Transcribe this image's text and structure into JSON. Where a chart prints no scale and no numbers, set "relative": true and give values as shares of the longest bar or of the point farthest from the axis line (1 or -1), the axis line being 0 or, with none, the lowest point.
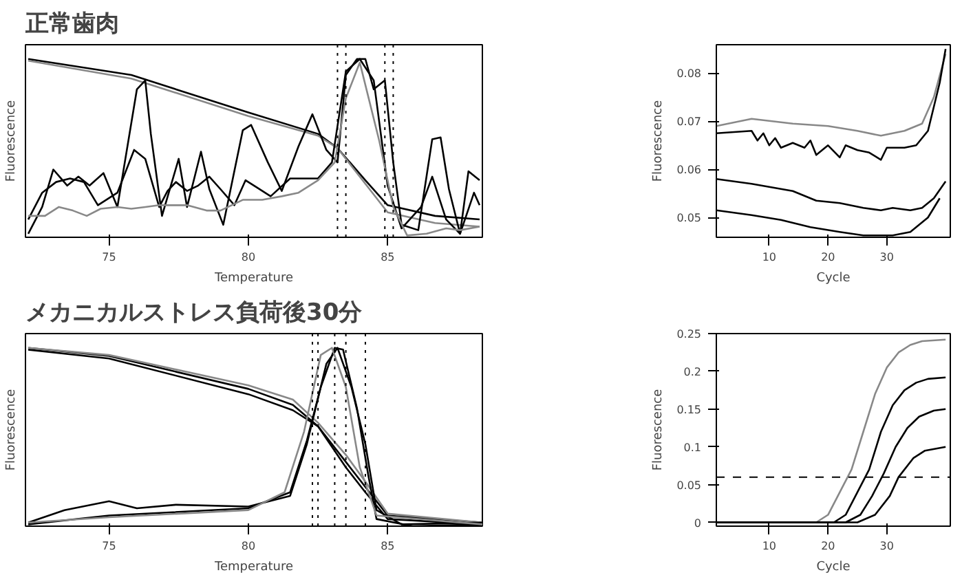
{
  "chart_data": [
    {
      "type": "line",
      "title": "正常歯肉",
      "xlabel": "Temperature",
      "ylabel": "Fluorescence",
      "relative": true,
      "tick_labels": "x",
      "grid": false,
      "xlim": [
        72.0,
        88.4
      ],
      "xticks": [
        75,
        80,
        85
      ],
      "ref_lines": [
        {
          "axis": "x",
          "value": 83.2,
          "line_style": "dotted",
          "color": "#000000"
        },
        {
          "axis": "x",
          "value": 83.5,
          "line_style": "dotted",
          "color": "#000000"
        },
        {
          "axis": "x",
          "value": 84.9,
          "line_style": "dotted",
          "color": "#000000"
        },
        {
          "axis": "x",
          "value": 85.2,
          "line_style": "dotted",
          "color": "#000000"
        }
      ],
      "series": [
        {
          "color": "#000000",
          "x": [
            72.1,
            75.8,
            80.0,
            82.5,
            83.2,
            84.2,
            85.0,
            86.7,
            88.3
          ],
          "values": [
            1.0,
            0.91,
            0.7,
            0.58,
            0.5,
            0.32,
            0.18,
            0.12,
            0.1
          ]
        },
        {
          "color": "#888888",
          "x": [
            72.1,
            75.8,
            80.0,
            82.5,
            83.2,
            84.2,
            85.0,
            86.7,
            88.3
          ],
          "values": [
            0.99,
            0.89,
            0.68,
            0.57,
            0.5,
            0.3,
            0.14,
            0.08,
            0.06
          ]
        },
        {
          "color": "#000000",
          "x": [
            72.1,
            72.6,
            73.0,
            73.5,
            73.9,
            74.3,
            74.8,
            75.3,
            76.0,
            76.3,
            76.5,
            76.9,
            77.5,
            77.8,
            78.3,
            78.6,
            79.1,
            79.8,
            80.1,
            80.7,
            81.2,
            81.8,
            82.3,
            82.8,
            83.2,
            83.5,
            83.9,
            84.2,
            84.5,
            84.9,
            85.2,
            85.5,
            86.1,
            86.6,
            86.9,
            87.2,
            87.6,
            87.9,
            88.3
          ],
          "values": [
            0.02,
            0.17,
            0.38,
            0.29,
            0.34,
            0.29,
            0.36,
            0.17,
            0.83,
            0.88,
            0.58,
            0.12,
            0.44,
            0.17,
            0.48,
            0.27,
            0.07,
            0.6,
            0.63,
            0.42,
            0.26,
            0.51,
            0.69,
            0.49,
            0.42,
            0.91,
            1.0,
            1.0,
            0.83,
            0.88,
            0.42,
            0.07,
            0.04,
            0.55,
            0.56,
            0.27,
            0.02,
            0.37,
            0.32
          ]
        },
        {
          "color": "#000000",
          "x": [
            72.1,
            72.6,
            73.1,
            73.6,
            74.1,
            74.6,
            75.3,
            75.9,
            76.3,
            76.8,
            77.1,
            77.4,
            77.8,
            78.2,
            78.6,
            79.0,
            79.5,
            79.9,
            80.3,
            80.8,
            81.5,
            82.5,
            83.0,
            83.5,
            84.0,
            84.5,
            85.0,
            85.5,
            86.2,
            86.6,
            87.1,
            87.6,
            88.1,
            88.3
          ],
          "values": [
            0.1,
            0.25,
            0.31,
            0.33,
            0.31,
            0.18,
            0.25,
            0.49,
            0.44,
            0.17,
            0.26,
            0.31,
            0.26,
            0.29,
            0.34,
            0.27,
            0.18,
            0.32,
            0.28,
            0.23,
            0.33,
            0.33,
            0.42,
            0.93,
            1.0,
            0.88,
            0.29,
            0.05,
            0.17,
            0.34,
            0.1,
            0.02,
            0.25,
            0.18
          ]
        },
        {
          "color": "#888888",
          "x": [
            72.1,
            72.7,
            73.2,
            73.7,
            74.2,
            74.7,
            75.3,
            75.8,
            76.3,
            76.8,
            77.3,
            77.8,
            78.5,
            79.0,
            79.8,
            80.5,
            81.2,
            81.8,
            82.5,
            83.1,
            83.5,
            84.0,
            84.7,
            85.2,
            85.7,
            86.4,
            87.1,
            87.6,
            88.3
          ],
          "values": [
            0.12,
            0.12,
            0.17,
            0.15,
            0.12,
            0.16,
            0.17,
            0.16,
            0.17,
            0.18,
            0.18,
            0.18,
            0.15,
            0.15,
            0.21,
            0.21,
            0.23,
            0.25,
            0.32,
            0.42,
            0.78,
            0.98,
            0.54,
            0.17,
            0.01,
            0.02,
            0.05,
            0.04,
            0.06
          ]
        }
      ]
    },
    {
      "type": "line",
      "xlabel": "Cycle",
      "ylabel": "Fluorescence",
      "grid": false,
      "xlim": [
        1,
        40.8
      ],
      "xticks": [
        10,
        20,
        30
      ],
      "ylim": [
        0.0459,
        0.0859
      ],
      "yticks": [
        {
          "value": 0.05,
          "label": "0.05"
        },
        {
          "value": 0.06,
          "label": "0.06"
        },
        {
          "value": 0.07,
          "label": "0.07"
        },
        {
          "value": 0.08,
          "label": "0.08"
        }
      ],
      "series": [
        {
          "color": "#888888",
          "x": [
            1,
            7,
            14,
            20,
            25,
            29,
            33,
            36,
            38,
            40
          ],
          "values": [
            0.069,
            0.0705,
            0.0695,
            0.069,
            0.068,
            0.067,
            0.068,
            0.0695,
            0.075,
            0.084
          ]
        },
        {
          "color": "#000000",
          "x": [
            1,
            7,
            8,
            9,
            10,
            11,
            12,
            14,
            16,
            17,
            18,
            20,
            22,
            23,
            25,
            27,
            29,
            30,
            33,
            35,
            37,
            39,
            40
          ],
          "values": [
            0.0675,
            0.068,
            0.066,
            0.0675,
            0.065,
            0.0665,
            0.0645,
            0.0655,
            0.0645,
            0.066,
            0.063,
            0.065,
            0.0625,
            0.065,
            0.064,
            0.0635,
            0.062,
            0.0645,
            0.0645,
            0.065,
            0.068,
            0.078,
            0.085
          ]
        },
        {
          "color": "#000000",
          "x": [
            1,
            7,
            14,
            18,
            22,
            26,
            29,
            31,
            34,
            36,
            38,
            40
          ],
          "values": [
            0.058,
            0.057,
            0.0555,
            0.0535,
            0.053,
            0.052,
            0.0515,
            0.052,
            0.0515,
            0.052,
            0.054,
            0.0575
          ]
        },
        {
          "color": "#000000",
          "x": [
            1,
            7,
            12,
            17,
            22,
            26,
            31,
            34,
            37,
            39
          ],
          "values": [
            0.0515,
            0.0505,
            0.0495,
            0.048,
            0.047,
            0.0463,
            0.0463,
            0.047,
            0.05,
            0.054
          ]
        }
      ]
    },
    {
      "type": "line",
      "title": "メカニカルストレス負荷後30分",
      "xlabel": "Temperature",
      "ylabel": "Fluorescence",
      "relative": true,
      "tick_labels": "x",
      "grid": false,
      "xlim": [
        72.0,
        88.4
      ],
      "xticks": [
        75,
        80,
        85
      ],
      "ref_lines": [
        {
          "axis": "x",
          "value": 82.3,
          "line_style": "dotted",
          "color": "#000000"
        },
        {
          "axis": "x",
          "value": 82.5,
          "line_style": "dotted",
          "color": "#000000"
        },
        {
          "axis": "x",
          "value": 83.1,
          "line_style": "dotted",
          "color": "#000000"
        },
        {
          "axis": "x",
          "value": 83.5,
          "line_style": "dotted",
          "color": "#000000"
        },
        {
          "axis": "x",
          "value": 84.2,
          "line_style": "dotted",
          "color": "#000000"
        }
      ],
      "series": [
        {
          "color": "#000000",
          "x": [
            72.1,
            75.0,
            80.0,
            81.6,
            82.5,
            83.5,
            84.2,
            85.0,
            88.4
          ],
          "values": [
            1.0,
            0.955,
            0.77,
            0.68,
            0.56,
            0.33,
            0.19,
            0.04,
            0.01
          ]
        },
        {
          "color": "#000000",
          "x": [
            72.1,
            75.0,
            80.0,
            81.6,
            82.5,
            83.5,
            84.2,
            85.0,
            88.4
          ],
          "values": [
            0.99,
            0.94,
            0.74,
            0.65,
            0.56,
            0.36,
            0.22,
            0.06,
            0.02
          ]
        },
        {
          "color": "#888888",
          "x": [
            72.1,
            75.0,
            80.0,
            81.6,
            82.5,
            83.5,
            84.2,
            85.0,
            88.4
          ],
          "values": [
            1.0,
            0.96,
            0.79,
            0.71,
            0.58,
            0.4,
            0.25,
            0.07,
            0.02
          ]
        },
        {
          "color": "#000000",
          "x": [
            72.1,
            75.0,
            80.0,
            81.5,
            82.1,
            82.6,
            83.1,
            83.4,
            83.9,
            84.3,
            84.6,
            85.9,
            88.4
          ],
          "values": [
            0.01,
            0.06,
            0.1,
            0.19,
            0.48,
            0.78,
            1.0,
            0.99,
            0.66,
            0.29,
            0.04,
            0.0,
            0.01
          ]
        },
        {
          "color": "#000000",
          "x": [
            72.1,
            73.4,
            75.0,
            76.0,
            77.4,
            80.0,
            81.5,
            82.1,
            82.8,
            83.2,
            83.7,
            84.2,
            84.6,
            85.5,
            88.4
          ],
          "values": [
            0.02,
            0.09,
            0.14,
            0.1,
            0.12,
            0.11,
            0.17,
            0.46,
            0.91,
            1.0,
            0.78,
            0.46,
            0.09,
            0.01,
            0.02
          ]
        },
        {
          "color": "#888888",
          "x": [
            72.1,
            75.0,
            80.0,
            81.3,
            82.0,
            82.6,
            83.0,
            83.5,
            84.0,
            84.6,
            88.4
          ],
          "values": [
            0.02,
            0.05,
            0.09,
            0.19,
            0.53,
            0.96,
            1.0,
            0.78,
            0.33,
            0.06,
            0.01
          ]
        }
      ]
    },
    {
      "type": "line",
      "xlabel": "Cycle",
      "ylabel": "Fluorescence",
      "grid": false,
      "xlim": [
        1,
        40.8
      ],
      "xticks": [
        10,
        20,
        30
      ],
      "ylim": [
        -0.005,
        0.25
      ],
      "yticks": [
        0,
        {
          "value": 0.05,
          "label": "0.05"
        },
        {
          "value": 0.1,
          "label": "0.1"
        },
        {
          "value": 0.15,
          "label": "0.15"
        },
        {
          "value": 0.2,
          "label": "0.2"
        },
        {
          "value": 0.25,
          "label": "0.25"
        }
      ],
      "ref_lines": [
        {
          "axis": "y",
          "value": 0.06,
          "line_style": "dashed",
          "color": "#000000"
        }
      ],
      "series": [
        {
          "color": "#888888",
          "x": [
            1,
            18,
            20,
            22,
            24,
            26,
            28,
            30,
            32,
            34,
            36,
            40
          ],
          "values": [
            0,
            0,
            0.01,
            0.04,
            0.07,
            0.12,
            0.17,
            0.205,
            0.225,
            0.235,
            0.24,
            0.242
          ]
        },
        {
          "color": "#000000",
          "x": [
            1,
            21,
            23,
            25,
            27,
            29,
            31,
            33,
            35,
            37,
            40
          ],
          "values": [
            0,
            0,
            0.01,
            0.04,
            0.07,
            0.12,
            0.155,
            0.175,
            0.185,
            0.19,
            0.192
          ]
        },
        {
          "color": "#000000",
          "x": [
            1,
            23,
            25.5,
            27.5,
            29.5,
            31.5,
            33.5,
            35.5,
            38,
            40
          ],
          "values": [
            0,
            0,
            0.01,
            0.035,
            0.065,
            0.1,
            0.125,
            0.14,
            0.148,
            0.15
          ]
        },
        {
          "color": "#000000",
          "x": [
            1,
            25,
            28,
            30.5,
            32,
            34.5,
            36.5,
            40
          ],
          "values": [
            0,
            0,
            0.01,
            0.035,
            0.06,
            0.085,
            0.095,
            0.1
          ]
        }
      ]
    }
  ]
}
